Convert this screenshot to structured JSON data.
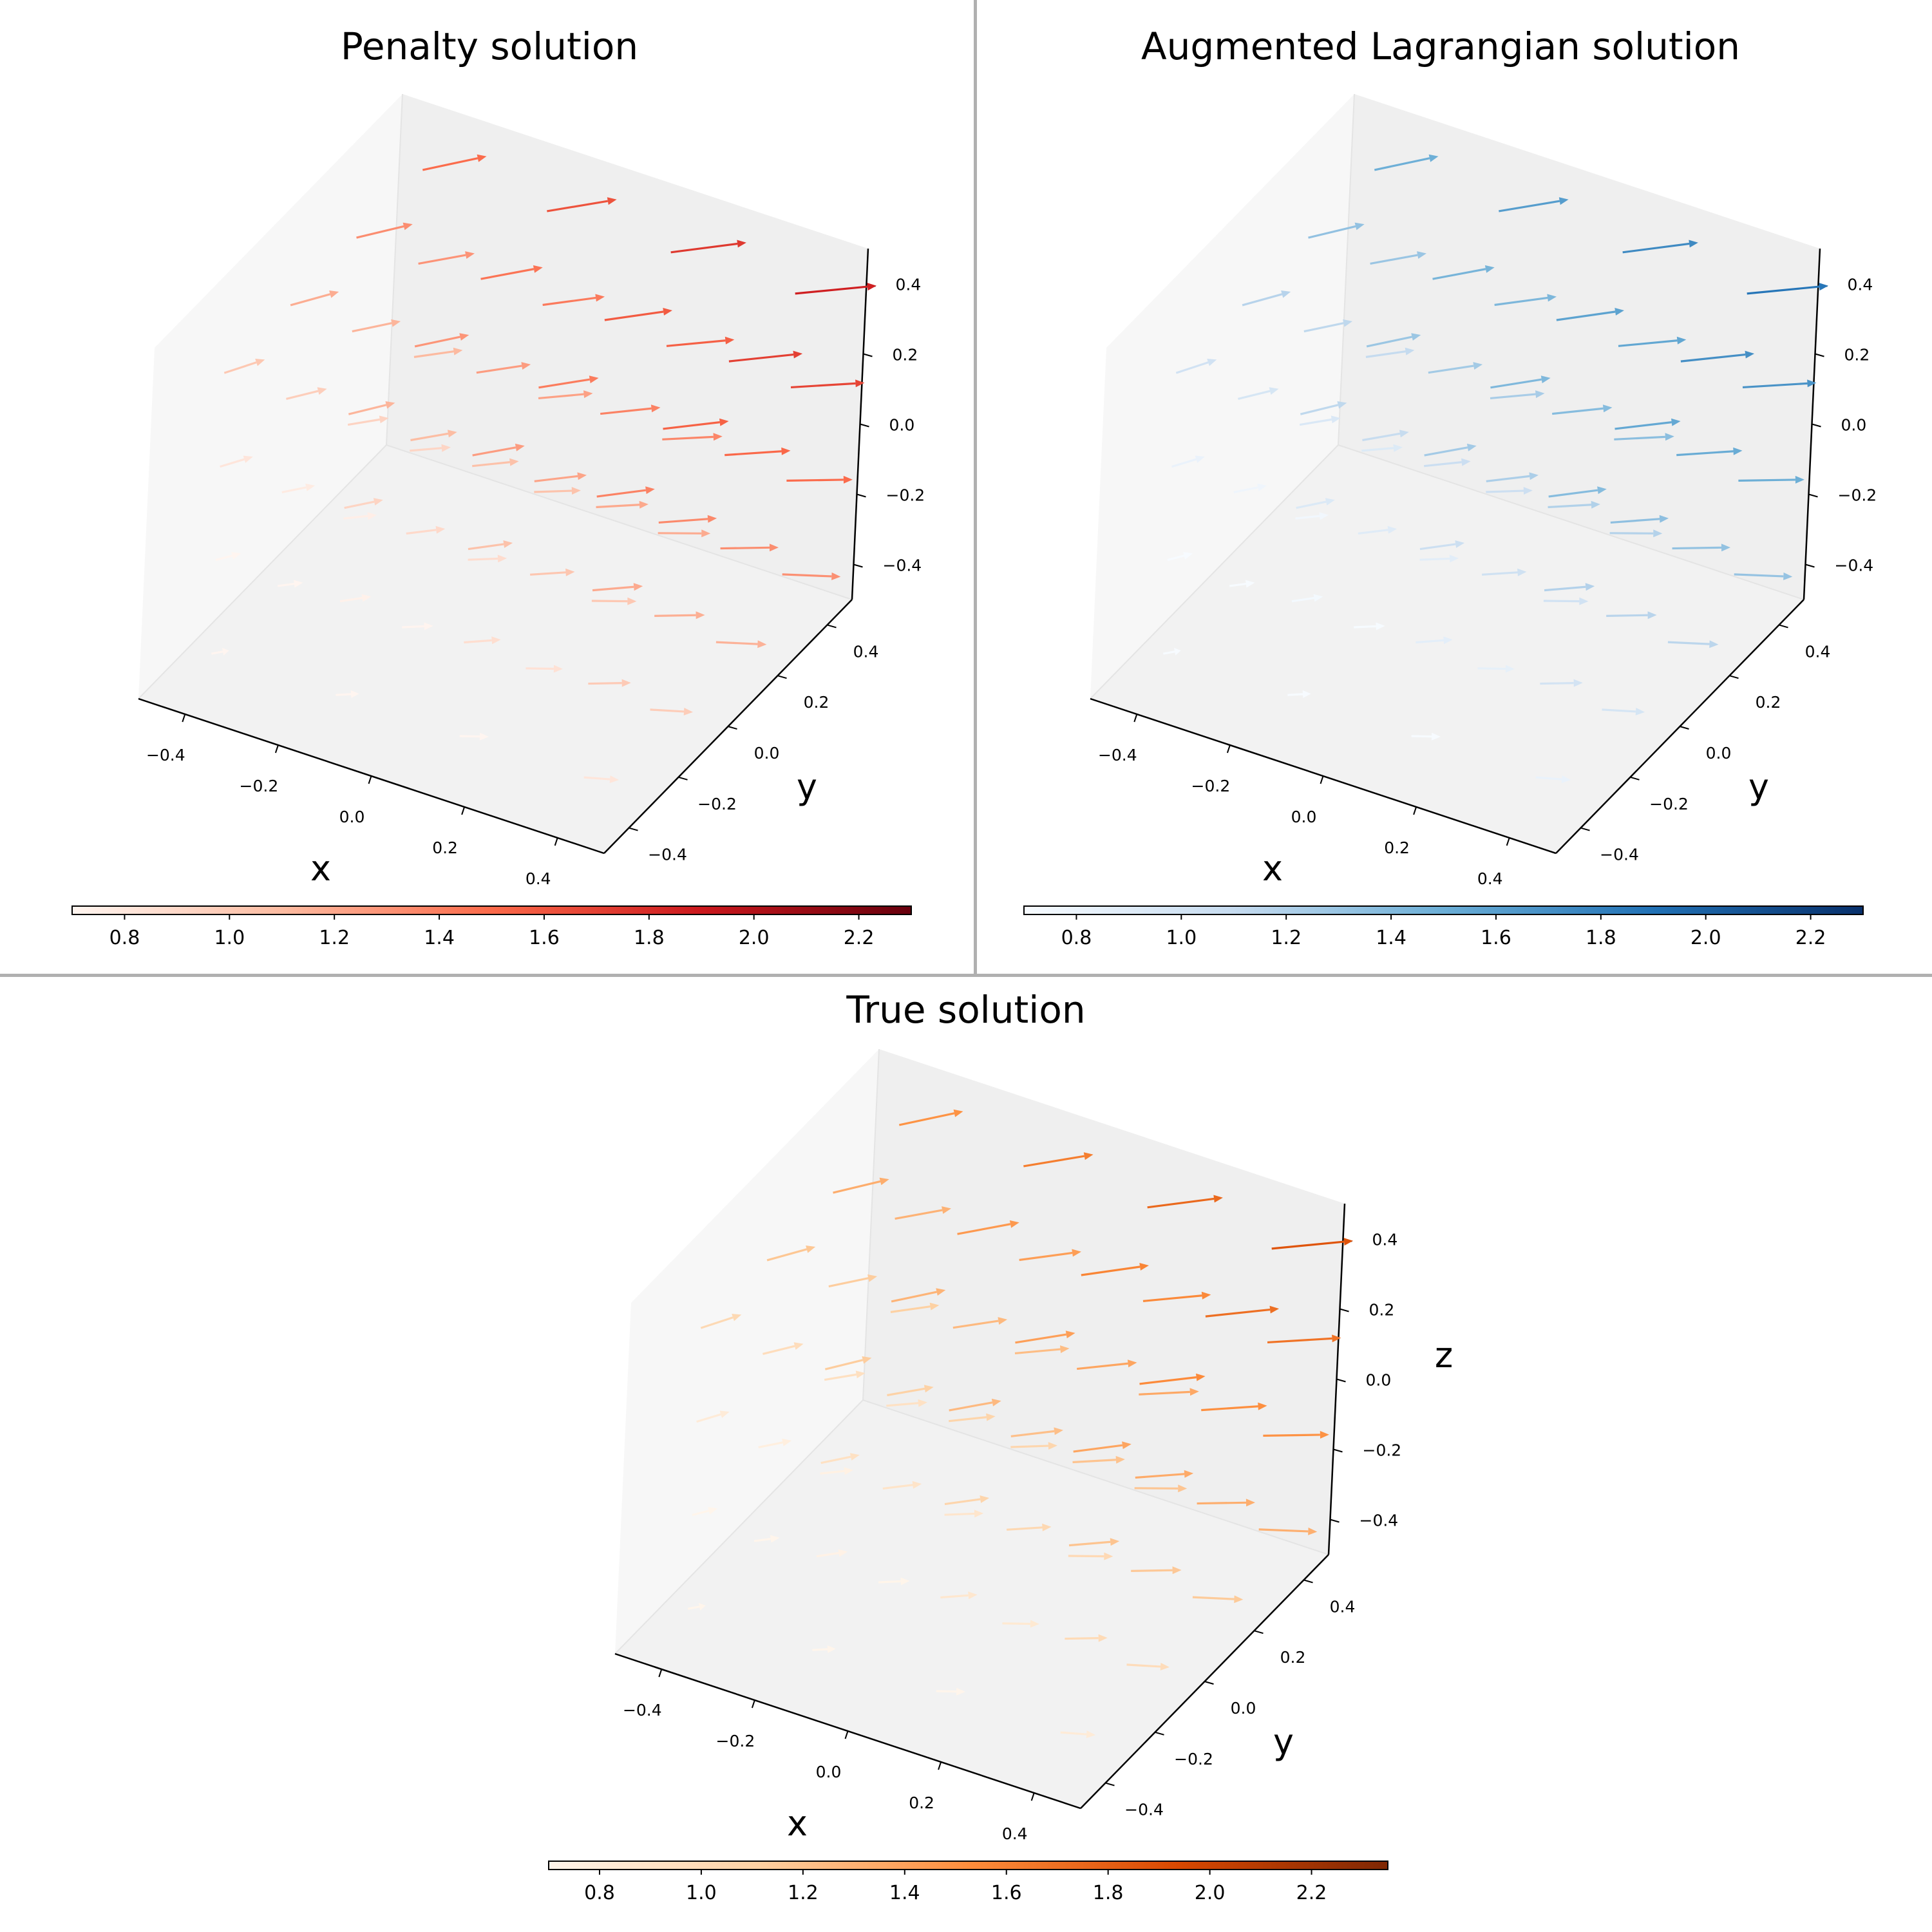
{
  "chart_data": [
    {
      "type": "quiver3d",
      "title": "Penalty solution",
      "xlabel": "x",
      "ylabel": "y",
      "zlabel": "",
      "xlim": [
        -0.5,
        0.5
      ],
      "ylim": [
        -0.5,
        0.5
      ],
      "zlim": [
        -0.5,
        0.5
      ],
      "xticks": [
        "−0.4",
        "−0.2",
        "0.0",
        "0.2",
        "0.4"
      ],
      "yticks": [
        "−0.4",
        "−0.2",
        "0.0",
        "0.2",
        "0.4"
      ],
      "zticks": [
        "−0.4",
        "−0.2",
        "0.0",
        "0.2",
        "0.4"
      ],
      "grid_points": [
        -0.4,
        -0.133,
        0.133,
        0.4
      ],
      "field": "u = (1 + 0.55(x+y+z), 0.45 + 0.35y + 0.3z, 0.3 + 0.45z); color = |u|",
      "colormap": "Reds",
      "colors": [
        "#fff5f0",
        "#fcbba1",
        "#fb6a4a",
        "#cb181d",
        "#67000d"
      ],
      "colorbar": {
        "range": [
          0.7,
          2.3
        ],
        "ticks": [
          "0.8",
          "1.0",
          "1.2",
          "1.4",
          "1.6",
          "1.8",
          "2.0",
          "2.2"
        ]
      }
    },
    {
      "type": "quiver3d",
      "title": "Augmented Lagrangian solution",
      "xlabel": "x",
      "ylabel": "y",
      "zlabel": "",
      "xlim": [
        -0.5,
        0.5
      ],
      "ylim": [
        -0.5,
        0.5
      ],
      "zlim": [
        -0.5,
        0.5
      ],
      "xticks": [
        "−0.4",
        "−0.2",
        "0.0",
        "0.2",
        "0.4"
      ],
      "yticks": [
        "−0.4",
        "−0.2",
        "0.0",
        "0.2",
        "0.4"
      ],
      "zticks": [
        "−0.4",
        "−0.2",
        "0.0",
        "0.2",
        "0.4"
      ],
      "grid_points": [
        -0.4,
        -0.133,
        0.133,
        0.4
      ],
      "field": "u = (1 + 0.55(x+y+z), 0.45 + 0.35y + 0.3z, 0.3 + 0.45z); color = |u|",
      "colormap": "Blues",
      "colors": [
        "#f7fbff",
        "#c6dbef",
        "#6baed6",
        "#2171b5",
        "#08306b"
      ],
      "colorbar": {
        "range": [
          0.7,
          2.3
        ],
        "ticks": [
          "0.8",
          "1.0",
          "1.2",
          "1.4",
          "1.6",
          "1.8",
          "2.0",
          "2.2"
        ]
      }
    },
    {
      "type": "quiver3d",
      "title": "True solution",
      "xlabel": "x",
      "ylabel": "y",
      "zlabel": "z",
      "xlim": [
        -0.5,
        0.5
      ],
      "ylim": [
        -0.5,
        0.5
      ],
      "zlim": [
        -0.5,
        0.5
      ],
      "xticks": [
        "−0.4",
        "−0.2",
        "0.0",
        "0.2",
        "0.4"
      ],
      "yticks": [
        "−0.4",
        "−0.2",
        "0.0",
        "0.2",
        "0.4"
      ],
      "zticks": [
        "−0.4",
        "−0.2",
        "0.0",
        "0.2",
        "0.4"
      ],
      "grid_points": [
        -0.4,
        -0.133,
        0.133,
        0.4
      ],
      "field": "u = (1 + 0.55(x+y+z), 0.45 + 0.35y + 0.3z, 0.3 + 0.45z); color = |u|",
      "colormap": "Oranges",
      "colors": [
        "#fff5eb",
        "#fdd0a2",
        "#fd8d3c",
        "#d94801",
        "#7f2704"
      ],
      "colorbar": {
        "range": [
          0.7,
          2.35
        ],
        "ticks": [
          "0.8",
          "1.0",
          "1.2",
          "1.4",
          "1.6",
          "1.8",
          "2.0",
          "2.2"
        ]
      }
    }
  ]
}
